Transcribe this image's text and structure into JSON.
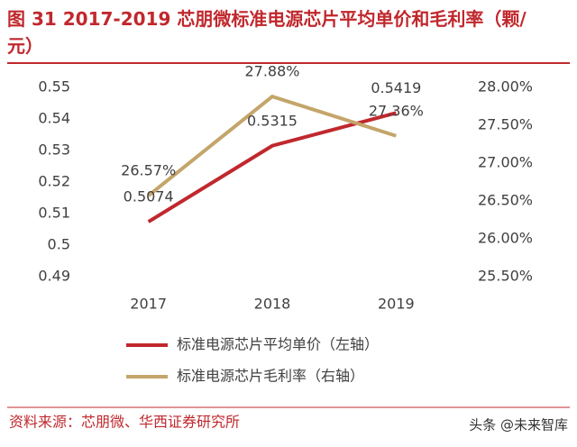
{
  "chart_data": {
    "type": "line",
    "title": "图 31 2017-2019 芯朋微标准电源芯片平均单价和毛利率（颗/元）",
    "categories": [
      "2017",
      "2018",
      "2019"
    ],
    "series": [
      {
        "name": "标准电源芯片平均单价（左轴）",
        "color": "#c0282d",
        "values": [
          0.5074,
          0.5315,
          0.5419
        ]
      },
      {
        "name": "标准电源芯片毛利率（右轴）",
        "color": "#c4a56a",
        "axis": "y2",
        "values": [
          26.57,
          27.88,
          27.36
        ],
        "value_labels": [
          "26.57%",
          "27.88%",
          "27.36%"
        ]
      }
    ],
    "ylim": [
      0.49,
      0.55
    ],
    "yticks": [
      0.49,
      0.5,
      0.51,
      0.52,
      0.53,
      0.54,
      0.55
    ],
    "y2lim": [
      25.5,
      28
    ],
    "y2ticks": [
      {
        "value": 25.5,
        "label": "25.50%"
      },
      {
        "value": 26,
        "label": "26.00%"
      },
      {
        "value": 26.5,
        "label": "26.50%"
      },
      {
        "value": 27,
        "label": "27.00%"
      },
      {
        "value": 27.5,
        "label": "27.50%"
      },
      {
        "value": 28,
        "label": "28.00%"
      }
    ],
    "grid": false,
    "source": "资料来源：芯朋微、华西证券研究所",
    "watermark": "头条 @未来智库"
  }
}
